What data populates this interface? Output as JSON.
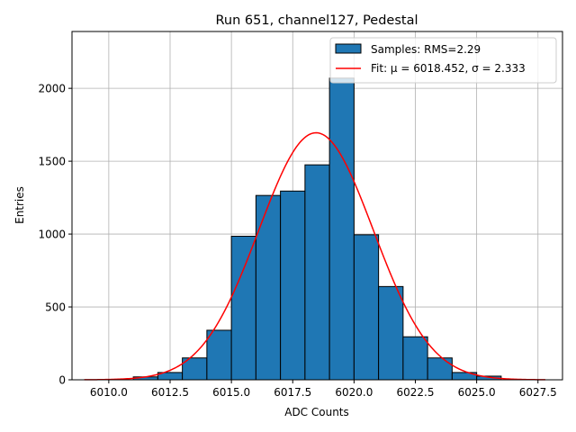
{
  "chart_data": {
    "type": "histogram",
    "title": "Run 651, channel127, Pedestal",
    "xlabel": "ADC Counts",
    "ylabel": "Entries",
    "xlim": [
      6008.5,
      6028.5
    ],
    "ylim": [
      0,
      2390
    ],
    "grid": true,
    "legend_position": "top-right",
    "x_ticks": [
      6010.0,
      6012.5,
      6015.0,
      6017.5,
      6020.0,
      6022.5,
      6025.0,
      6027.5
    ],
    "x_tick_labels": [
      "6010.0",
      "6012.5",
      "6015.0",
      "6017.5",
      "6020.0",
      "6022.5",
      "6025.0",
      "6027.5"
    ],
    "y_ticks": [
      0,
      500,
      1000,
      1500,
      2000
    ],
    "y_tick_labels": [
      "0",
      "500",
      "1000",
      "1500",
      "2000"
    ],
    "histogram": {
      "name": "Samples: RMS=2.29",
      "bin_edges": [
        6011,
        6012,
        6013,
        6014,
        6015,
        6016,
        6017,
        6018,
        6019,
        6020,
        6021,
        6022,
        6023,
        6024,
        6025,
        6026
      ],
      "counts": [
        20,
        50,
        150,
        340,
        985,
        1265,
        1295,
        1475,
        2070,
        995,
        640,
        295,
        150,
        50,
        25
      ],
      "color": "#1f77b4",
      "edgecolor": "#000000"
    },
    "fit": {
      "name": "Fit: μ = 6018.452, σ = 2.333",
      "mu": 6018.452,
      "sigma": 2.333,
      "amplitude": 1695,
      "x_range": [
        6009.0,
        6027.8
      ],
      "color": "#ff0000"
    }
  }
}
